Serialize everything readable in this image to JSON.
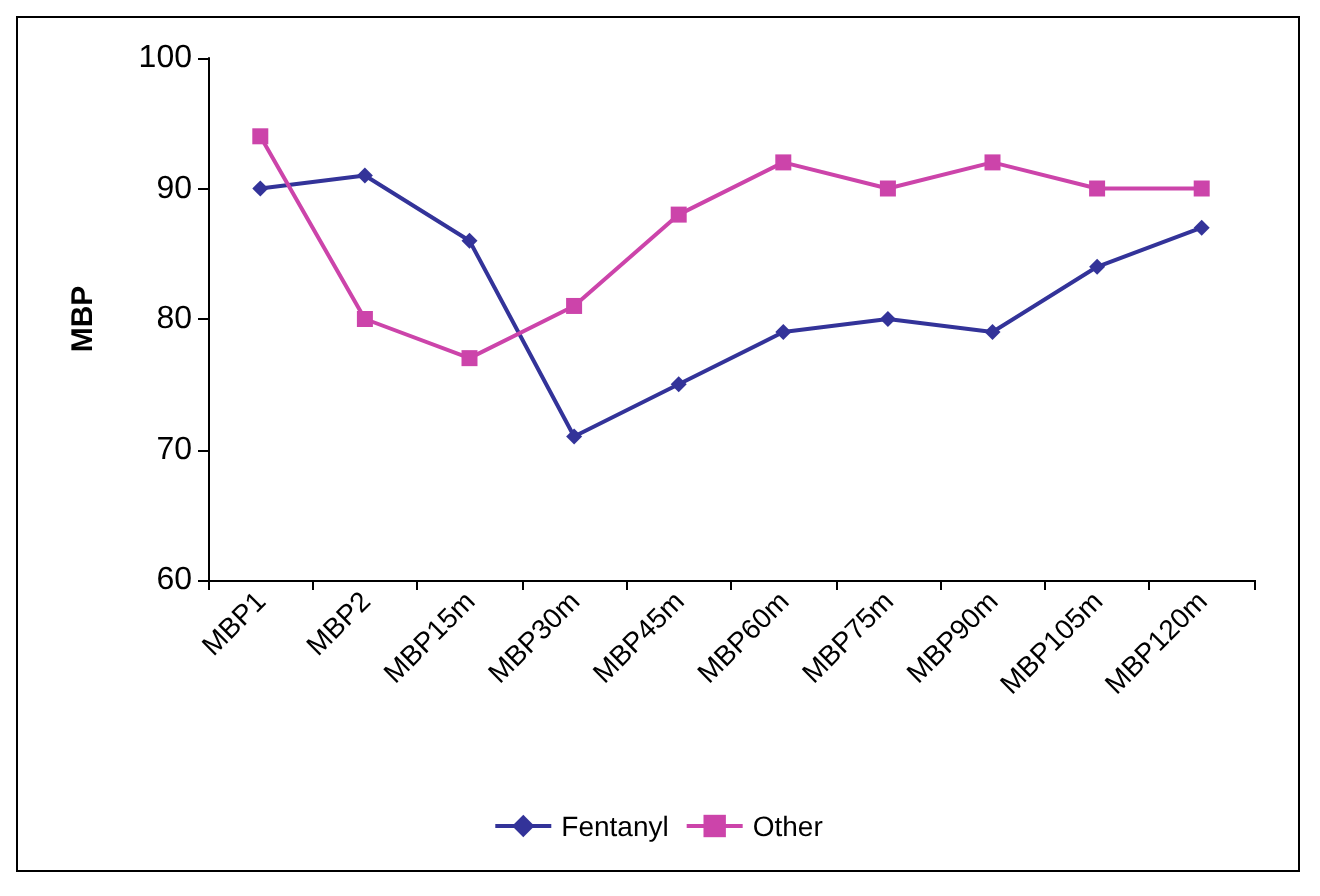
{
  "chart_data": {
    "type": "line",
    "ylabel": "MBP",
    "categories": [
      "MBP1",
      "MBP2",
      "MBP15m",
      "MBP30m",
      "MBP45m",
      "MBP60m",
      "MBP75m",
      "MBP90m",
      "MBP105m",
      "MBP120m"
    ],
    "series": [
      {
        "name": "Fentanyl",
        "color": "#333399",
        "marker": "diamond",
        "values": [
          90,
          91,
          86,
          71,
          75,
          79,
          80,
          79,
          84,
          87
        ]
      },
      {
        "name": "Other",
        "color": "#cc44aa",
        "marker": "square",
        "values": [
          94,
          80,
          77,
          81,
          88,
          92,
          90,
          92,
          90,
          90
        ]
      }
    ],
    "ylim": [
      60,
      100
    ],
    "yticks": [
      60,
      70,
      80,
      90,
      100
    ],
    "grid": false,
    "legend": "bottom"
  }
}
